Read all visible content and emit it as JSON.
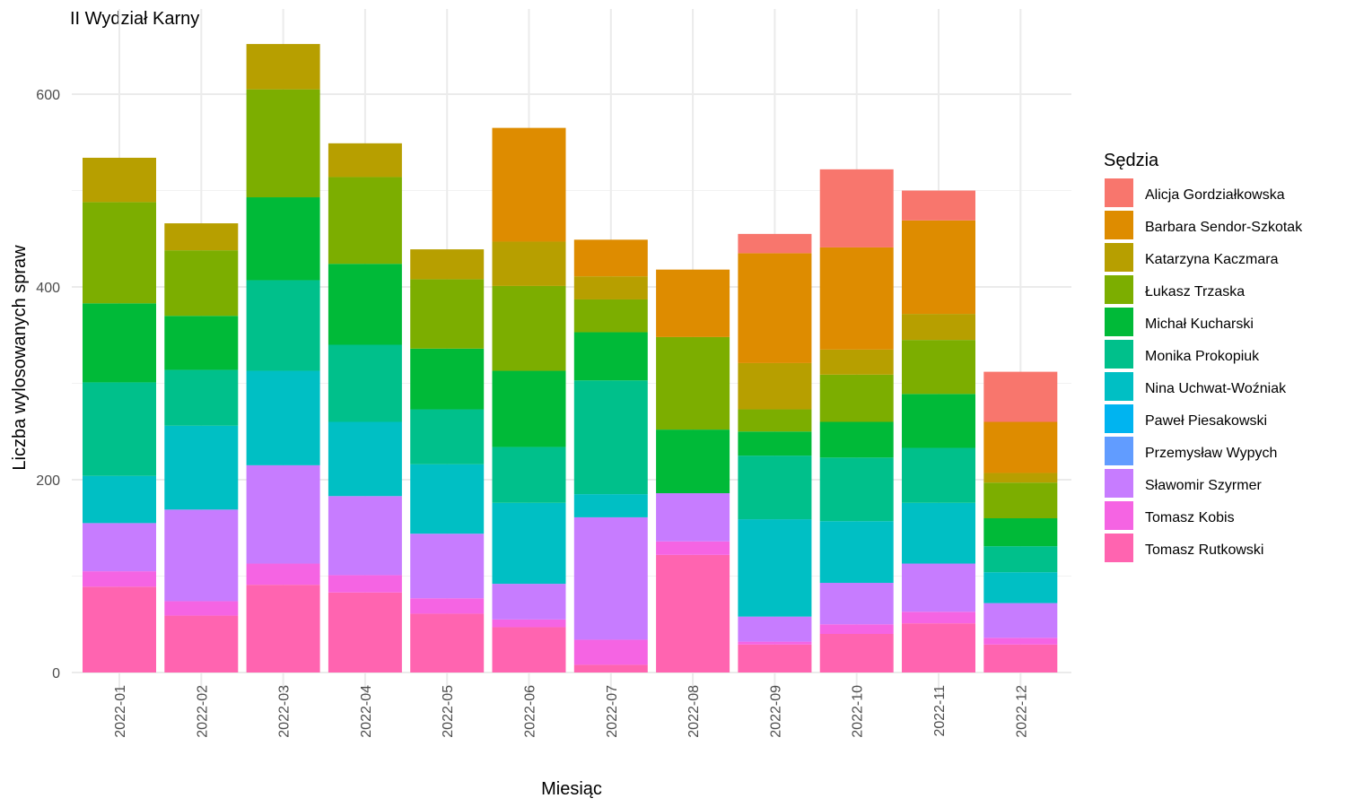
{
  "chart_data": {
    "type": "bar",
    "stacked": true,
    "title": "II Wydział Karny",
    "xlabel": "Miesiąc",
    "ylabel": "Liczba wylosowanych spraw",
    "ylim": [
      0,
      655
    ],
    "yticks": [
      0,
      200,
      400,
      600
    ],
    "grid": true,
    "legend_title": "Sędzia",
    "legend_position": "right",
    "categories": [
      "2022-01",
      "2022-02",
      "2022-03",
      "2022-04",
      "2022-05",
      "2022-06",
      "2022-07",
      "2022-08",
      "2022-09",
      "2022-10",
      "2022-11",
      "2022-12"
    ],
    "series": [
      {
        "name": "Alicja Gordziałkowska",
        "color": "#F8766D",
        "values": [
          0,
          0,
          0,
          0,
          0,
          0,
          0,
          0,
          20,
          81,
          31,
          52
        ]
      },
      {
        "name": "Barbara Sendor-Szkotak",
        "color": "#DE8C00",
        "values": [
          0,
          0,
          0,
          0,
          0,
          118,
          38,
          70,
          114,
          106,
          97,
          53
        ]
      },
      {
        "name": "Katarzyna Kaczmara",
        "color": "#B79F00",
        "values": [
          46,
          28,
          47,
          35,
          31,
          46,
          24,
          0,
          48,
          26,
          27,
          10
        ]
      },
      {
        "name": "Łukasz Trzaska",
        "color": "#7CAE00",
        "values": [
          105,
          68,
          112,
          90,
          72,
          88,
          34,
          96,
          23,
          49,
          56,
          37
        ]
      },
      {
        "name": "Michał Kucharski",
        "color": "#00BA38",
        "values": [
          82,
          56,
          86,
          84,
          63,
          79,
          50,
          66,
          25,
          37,
          56,
          29
        ]
      },
      {
        "name": "Monika Prokopiuk",
        "color": "#00C08B",
        "values": [
          97,
          58,
          94,
          80,
          57,
          58,
          118,
          0,
          66,
          66,
          57,
          27
        ]
      },
      {
        "name": "Nina Uchwat-Woźniak",
        "color": "#00BFC4",
        "values": [
          49,
          87,
          98,
          77,
          72,
          84,
          24,
          0,
          101,
          64,
          63,
          32
        ]
      },
      {
        "name": "Paweł Piesakowski",
        "color": "#00B4F0",
        "values": [
          0,
          0,
          0,
          0,
          0,
          0,
          0,
          0,
          0,
          0,
          0,
          0
        ]
      },
      {
        "name": "Przemysław Wypych",
        "color": "#619CFF",
        "values": [
          0,
          0,
          0,
          0,
          0,
          0,
          0,
          0,
          0,
          0,
          0,
          0
        ]
      },
      {
        "name": "Sławomir Szyrmer",
        "color": "#C77CFF",
        "values": [
          50,
          95,
          102,
          82,
          67,
          37,
          127,
          50,
          26,
          43,
          50,
          36
        ]
      },
      {
        "name": "Tomasz Kobis",
        "color": "#F564E3",
        "values": [
          16,
          15,
          22,
          18,
          16,
          8,
          26,
          14,
          3,
          10,
          12,
          7
        ]
      },
      {
        "name": "Tomasz Rutkowski",
        "color": "#FF64B0",
        "values": [
          89,
          59,
          91,
          83,
          61,
          47,
          8,
          122,
          29,
          40,
          51,
          29
        ]
      }
    ]
  }
}
